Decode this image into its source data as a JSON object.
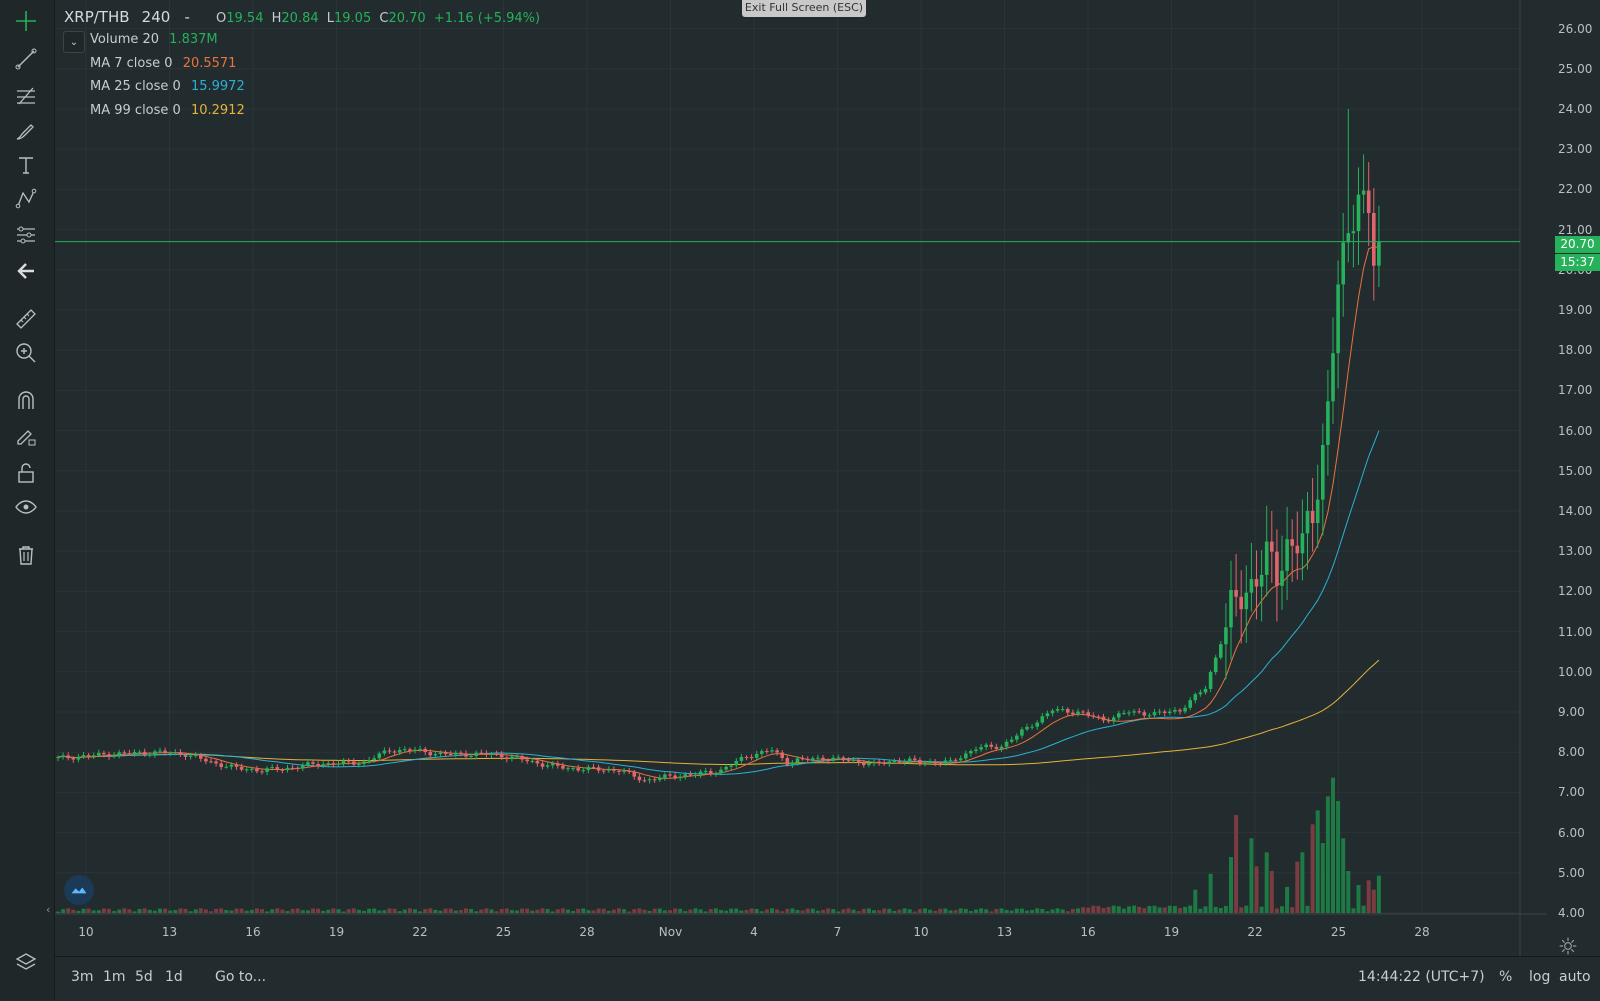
{
  "overlay": {
    "exit_fullscreen": "Exit Full Screen (ESC)"
  },
  "legend": {
    "symbol": "XRP/THB",
    "interval": "240",
    "dash": "-",
    "o_label": "O",
    "o_value": "19.54",
    "h_label": "H",
    "h_value": "20.84",
    "l_label": "L",
    "l_value": "19.05",
    "c_label": "C",
    "c_value": "20.70",
    "change": "+1.16 (+5.94%)",
    "volume_label": "Volume 20",
    "volume_value": "1.837M",
    "ma7_label": "MA 7 close 0",
    "ma7_value": "20.5571",
    "ma25_label": "MA 25 close 0",
    "ma25_value": "15.9972",
    "ma99_label": "MA 99 close 0",
    "ma99_value": "10.2912"
  },
  "colors": {
    "up": "#26b15b",
    "down": "#e0666d",
    "ma7": "#e8743b",
    "ma25": "#2bb1d6",
    "ma99": "#e6b33a",
    "up_volume": "#1d7a45",
    "down_volume": "#7a3c40"
  },
  "price_axis": {
    "ticks": [
      "26.00",
      "25.00",
      "24.00",
      "23.00",
      "22.00",
      "21.00",
      "20.00",
      "19.00",
      "18.00",
      "17.00",
      "16.00",
      "15.00",
      "14.00",
      "13.00",
      "12.00",
      "11.00",
      "10.00",
      "9.00",
      "8.00",
      "7.00",
      "6.00",
      "5.00",
      "4.00"
    ],
    "last_price": "20.70",
    "countdown": "15:37"
  },
  "time_axis": {
    "ticks": [
      "10",
      "13",
      "16",
      "19",
      "22",
      "25",
      "28",
      "Nov",
      "4",
      "7",
      "10",
      "13",
      "16",
      "19",
      "22",
      "25",
      "28"
    ]
  },
  "bottom": {
    "ranges": [
      "3m",
      "1m",
      "5d",
      "1d"
    ],
    "goto": "Go to...",
    "clock": "14:44:22 (UTC+7)",
    "percent": "%",
    "log": "log",
    "auto": "auto"
  },
  "chart_data": {
    "type": "candlestick",
    "symbol": "XRP/THB",
    "interval": "240",
    "ylim": [
      4,
      26
    ],
    "x_ticks": [
      "10",
      "13",
      "16",
      "19",
      "22",
      "25",
      "28",
      "Nov",
      "4",
      "7",
      "10",
      "13",
      "16",
      "19",
      "22",
      "25",
      "28"
    ],
    "price_path": [
      [
        0,
        7.85
      ],
      [
        10,
        7.95
      ],
      [
        20,
        8.0
      ],
      [
        25,
        7.95
      ],
      [
        30,
        7.75
      ],
      [
        35,
        7.6
      ],
      [
        40,
        7.55
      ],
      [
        45,
        7.6
      ],
      [
        50,
        7.7
      ],
      [
        60,
        7.75
      ],
      [
        65,
        8.05
      ],
      [
        70,
        8.05
      ],
      [
        75,
        7.95
      ],
      [
        85,
        7.95
      ],
      [
        90,
        7.85
      ],
      [
        95,
        7.7
      ],
      [
        100,
        7.6
      ],
      [
        110,
        7.55
      ],
      [
        115,
        7.3
      ],
      [
        120,
        7.4
      ],
      [
        125,
        7.45
      ],
      [
        130,
        7.55
      ],
      [
        135,
        7.9
      ],
      [
        140,
        8.05
      ],
      [
        143,
        7.75
      ],
      [
        145,
        7.8
      ],
      [
        150,
        7.85
      ],
      [
        155,
        7.8
      ],
      [
        160,
        7.7
      ],
      [
        165,
        7.8
      ],
      [
        170,
        7.75
      ],
      [
        175,
        7.75
      ],
      [
        180,
        8.1
      ],
      [
        185,
        8.15
      ],
      [
        190,
        8.6
      ],
      [
        195,
        9.05
      ],
      [
        200,
        9.0
      ],
      [
        205,
        8.8
      ],
      [
        210,
        9.0
      ],
      [
        215,
        8.95
      ],
      [
        220,
        9.05
      ],
      [
        225,
        9.6
      ],
      [
        230,
        11.5
      ],
      [
        235,
        12.4
      ],
      [
        237,
        12.8
      ],
      [
        239,
        12.4
      ],
      [
        241,
        13.2
      ],
      [
        244,
        13.2
      ],
      [
        246,
        13.8
      ],
      [
        249,
        16.6
      ],
      [
        251,
        19.6
      ],
      [
        252,
        20.2
      ],
      [
        253,
        20.8
      ],
      [
        255,
        22.1
      ],
      [
        257,
        21.4
      ],
      [
        258,
        20.2
      ],
      [
        259,
        20.7
      ]
    ],
    "ma7_last": 20.5571,
    "ma25_last": 15.9972,
    "ma99_last": 10.2912,
    "last_close": 20.7,
    "bars": 260,
    "volume_spikes": [
      [
        223,
        2.5
      ],
      [
        226,
        4.2
      ],
      [
        230,
        6.0
      ],
      [
        231,
        10.5
      ],
      [
        234,
        8.0
      ],
      [
        235,
        5.0
      ],
      [
        237,
        6.5
      ],
      [
        238,
        4.5
      ],
      [
        241,
        2.8
      ],
      [
        243,
        5.5
      ],
      [
        244,
        6.5
      ],
      [
        246,
        9.5
      ],
      [
        247,
        11.0
      ],
      [
        248,
        7.5
      ],
      [
        249,
        12.5
      ],
      [
        250,
        14.5
      ],
      [
        251,
        12.0
      ],
      [
        252,
        8.0
      ],
      [
        253,
        4.5
      ],
      [
        255,
        3.0
      ],
      [
        257,
        3.5
      ],
      [
        258,
        2.5
      ],
      [
        259,
        4.0
      ]
    ],
    "volume_max": 15
  }
}
